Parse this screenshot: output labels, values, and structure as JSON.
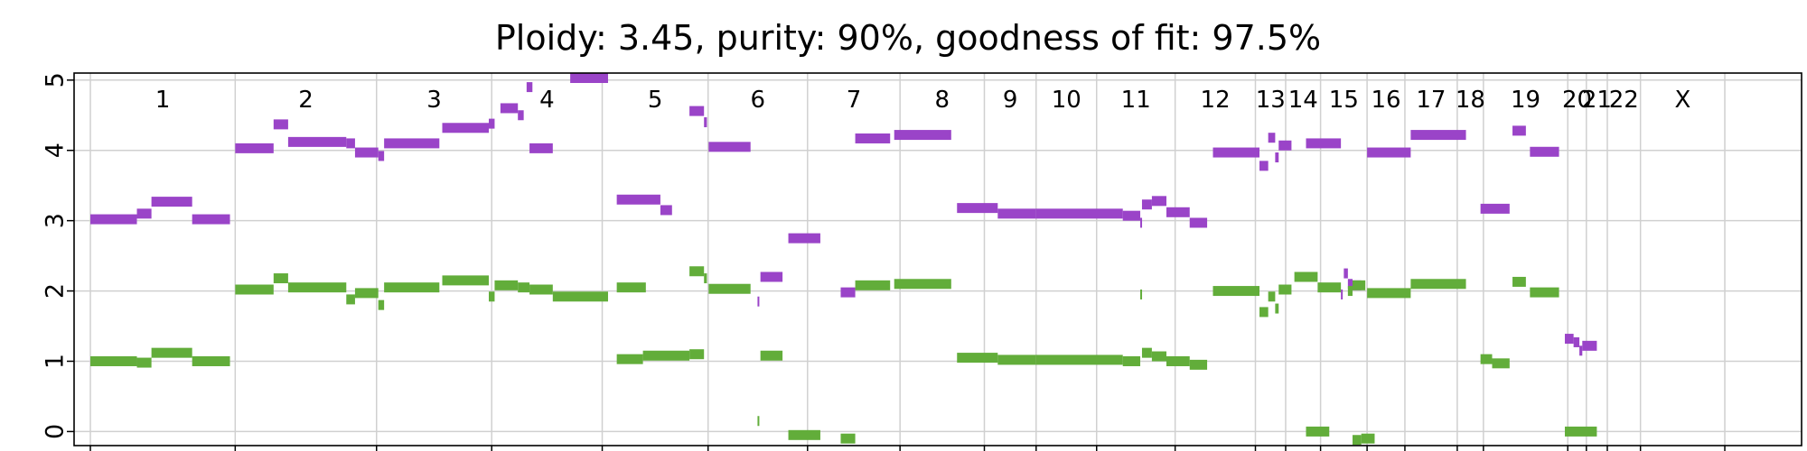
{
  "chart_data": {
    "type": "scatter",
    "title": "Ploidy: 3.45, purity: 90%, goodness of fit: 97.5%",
    "xlabel": "",
    "ylabel": "",
    "ylim": [
      -0.2,
      5.1
    ],
    "y_ticks": [
      "0",
      "1",
      "2",
      "3",
      "4",
      "5"
    ],
    "grid": true,
    "colors": {
      "major": "#9a44c8",
      "minor": "#62ad3a",
      "grid": "#d0d0d0",
      "axis": "#000000"
    },
    "chromosomes": [
      {
        "label": "1",
        "start": 0,
        "end": 249
      },
      {
        "label": "2",
        "start": 249,
        "end": 492
      },
      {
        "label": "3",
        "start": 492,
        "end": 690
      },
      {
        "label": "4",
        "start": 690,
        "end": 880
      },
      {
        "label": "5",
        "start": 880,
        "end": 1062
      },
      {
        "label": "6",
        "start": 1062,
        "end": 1233
      },
      {
        "label": "7",
        "start": 1233,
        "end": 1392
      },
      {
        "label": "8",
        "start": 1392,
        "end": 1537
      },
      {
        "label": "9",
        "start": 1537,
        "end": 1626
      },
      {
        "label": "10",
        "start": 1626,
        "end": 1730
      },
      {
        "label": "11",
        "start": 1730,
        "end": 1865
      },
      {
        "label": "12",
        "start": 1865,
        "end": 2003
      },
      {
        "label": "13",
        "start": 2003,
        "end": 2055
      },
      {
        "label": "14",
        "start": 2055,
        "end": 2115
      },
      {
        "label": "15",
        "start": 2115,
        "end": 2195
      },
      {
        "label": "16",
        "start": 2195,
        "end": 2260
      },
      {
        "label": "17",
        "start": 2260,
        "end": 2350
      },
      {
        "label": "18",
        "start": 2350,
        "end": 2395
      },
      {
        "label": "19",
        "start": 2395,
        "end": 2540
      },
      {
        "label": "20",
        "start": 2540,
        "end": 2572
      },
      {
        "label": "21",
        "start": 2572,
        "end": 2608
      },
      {
        "label": "22",
        "start": 2608,
        "end": 2665
      },
      {
        "label": "X",
        "start": 2665,
        "end": 2810
      }
    ],
    "series": [
      {
        "name": "",
        "color": "#9a44c8",
        "segments": [
          [
            0,
            80,
            3.02
          ],
          [
            80,
            105,
            3.1
          ],
          [
            105,
            175,
            3.27
          ],
          [
            175,
            240,
            3.02
          ],
          [
            249,
            315,
            4.03
          ],
          [
            315,
            340,
            4.37
          ],
          [
            340,
            440,
            4.12
          ],
          [
            440,
            455,
            4.1
          ],
          [
            455,
            495,
            3.97
          ],
          [
            495,
            505,
            3.92
          ],
          [
            505,
            600,
            4.1
          ],
          [
            605,
            685,
            4.32
          ],
          [
            685,
            695,
            4.38
          ],
          [
            705,
            735,
            4.6
          ],
          [
            735,
            745,
            4.5
          ],
          [
            755,
            795,
            4.03
          ],
          [
            750,
            760,
            4.9
          ],
          [
            825,
            890,
            5.1
          ],
          [
            905,
            980,
            3.3
          ],
          [
            980,
            1000,
            3.15
          ],
          [
            1030,
            1055,
            4.56
          ],
          [
            1055,
            1060,
            4.4
          ],
          [
            1063,
            1135,
            4.05
          ],
          [
            1147,
            1150,
            1.85
          ],
          [
            1152,
            1190,
            2.2
          ],
          [
            1200,
            1255,
            2.75
          ],
          [
            1290,
            1315,
            1.98
          ],
          [
            1315,
            1375,
            4.17
          ],
          [
            1382,
            1480,
            4.22
          ],
          [
            1490,
            1560,
            3.18
          ],
          [
            1560,
            1625,
            3.1
          ],
          [
            1625,
            1775,
            3.1
          ],
          [
            1775,
            1805,
            3.07
          ],
          [
            1805,
            1808,
            2.97
          ],
          [
            1808,
            1825,
            3.23
          ],
          [
            1825,
            1850,
            3.28
          ],
          [
            1850,
            1890,
            3.12
          ],
          [
            1890,
            1920,
            2.97
          ],
          [
            1930,
            2010,
            3.97
          ],
          [
            2010,
            2025,
            3.78
          ],
          [
            2025,
            2037,
            4.18
          ],
          [
            2037,
            2043,
            3.9
          ],
          [
            2043,
            2065,
            4.07
          ],
          [
            2090,
            2150,
            4.1
          ],
          [
            2150,
            2152,
            1.95
          ],
          [
            2155,
            2162,
            2.25
          ],
          [
            2162,
            2170,
            2.1
          ],
          [
            2170,
            2185,
            2.08
          ],
          [
            2195,
            2270,
            3.97
          ],
          [
            2270,
            2365,
            4.22
          ],
          [
            2390,
            2440,
            3.17
          ],
          [
            2445,
            2468,
            4.28
          ],
          [
            2475,
            2525,
            3.98
          ],
          [
            2535,
            2550,
            1.32
          ],
          [
            2550,
            2560,
            1.27
          ],
          [
            2560,
            2565,
            1.15
          ],
          [
            2565,
            2590,
            1.22
          ]
        ]
      },
      {
        "name": "",
        "color": "#62ad3a",
        "segments": [
          [
            0,
            80,
            1.0
          ],
          [
            80,
            105,
            0.98
          ],
          [
            105,
            175,
            1.12
          ],
          [
            175,
            240,
            1.0
          ],
          [
            249,
            315,
            2.02
          ],
          [
            315,
            340,
            2.18
          ],
          [
            340,
            440,
            2.05
          ],
          [
            440,
            455,
            1.88
          ],
          [
            455,
            495,
            1.97
          ],
          [
            495,
            505,
            1.8
          ],
          [
            505,
            600,
            2.05
          ],
          [
            605,
            685,
            2.15
          ],
          [
            685,
            695,
            1.92
          ],
          [
            695,
            735,
            2.08
          ],
          [
            735,
            755,
            2.05
          ],
          [
            755,
            795,
            2.02
          ],
          [
            795,
            890,
            1.92
          ],
          [
            905,
            955,
            2.05
          ],
          [
            905,
            950,
            1.03
          ],
          [
            950,
            1030,
            1.08
          ],
          [
            1030,
            1055,
            1.1
          ],
          [
            1030,
            1055,
            2.28
          ],
          [
            1055,
            1060,
            2.18
          ],
          [
            1063,
            1135,
            2.03
          ],
          [
            1147,
            1150,
            0.15
          ],
          [
            1152,
            1190,
            1.08
          ],
          [
            1200,
            1255,
            -0.05
          ],
          [
            1290,
            1315,
            -0.1
          ],
          [
            1315,
            1375,
            2.08
          ],
          [
            1382,
            1480,
            2.1
          ],
          [
            1490,
            1560,
            1.05
          ],
          [
            1560,
            1625,
            1.02
          ],
          [
            1625,
            1775,
            1.02
          ],
          [
            1775,
            1805,
            1.0
          ],
          [
            1805,
            1808,
            1.95
          ],
          [
            1808,
            1825,
            1.12
          ],
          [
            1825,
            1850,
            1.07
          ],
          [
            1850,
            1890,
            1.0
          ],
          [
            1890,
            1920,
            0.95
          ],
          [
            1930,
            2010,
            2.0
          ],
          [
            2010,
            2025,
            1.7
          ],
          [
            2025,
            2037,
            1.92
          ],
          [
            2037,
            2043,
            1.75
          ],
          [
            2043,
            2065,
            2.02
          ],
          [
            2070,
            2110,
            2.2
          ],
          [
            2090,
            2130,
            0.0
          ],
          [
            2110,
            2150,
            2.05
          ],
          [
            2170,
            2185,
            -0.12
          ],
          [
            2185,
            2208,
            -0.1
          ],
          [
            2162,
            2170,
            2.0
          ],
          [
            2170,
            2192,
            2.08
          ],
          [
            2195,
            2270,
            1.97
          ],
          [
            2270,
            2365,
            2.1
          ],
          [
            2390,
            2410,
            1.03
          ],
          [
            2410,
            2440,
            0.97
          ],
          [
            2445,
            2468,
            2.13
          ],
          [
            2475,
            2525,
            1.98
          ],
          [
            2535,
            2590,
            0.0
          ]
        ]
      }
    ]
  }
}
